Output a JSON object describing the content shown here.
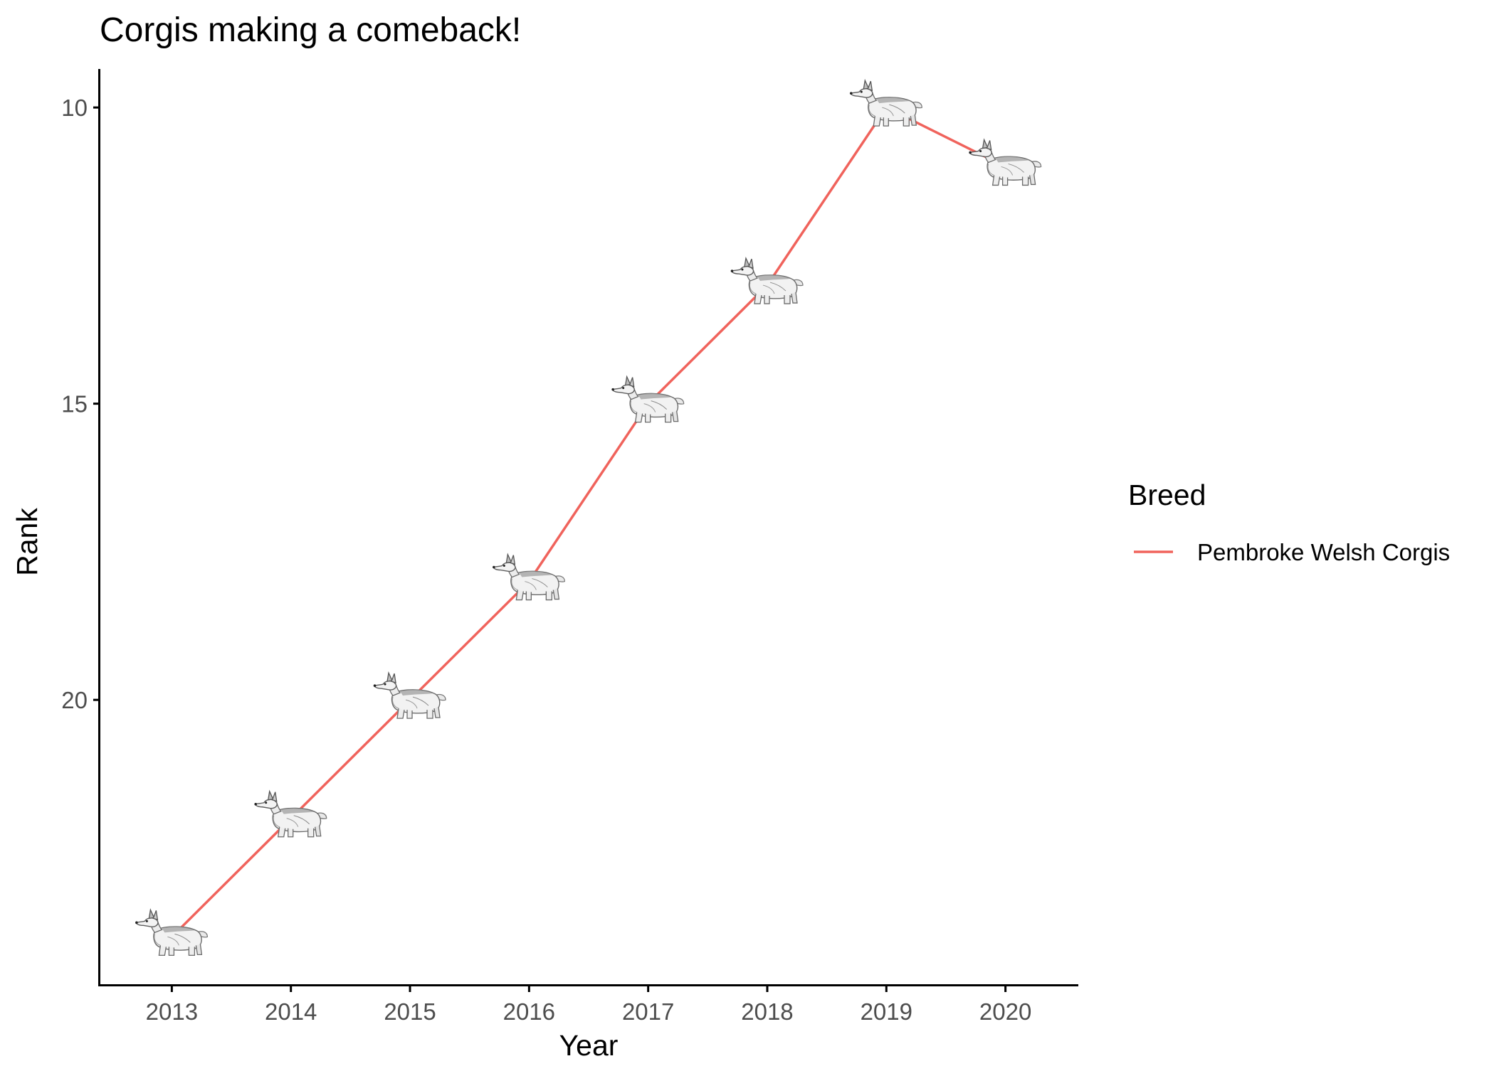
{
  "chart_data": {
    "type": "line",
    "title": "Corgis making a comeback!",
    "xlabel": "Year",
    "ylabel": "Rank",
    "x": [
      2013,
      2014,
      2015,
      2016,
      2017,
      2018,
      2019,
      2020
    ],
    "series": [
      {
        "name": "Pembroke Welsh Corgis",
        "values": [
          24,
          22,
          20,
          18,
          15,
          13,
          10,
          11
        ]
      }
    ],
    "y_reversed": true,
    "ylim": [
      24.8,
      9.35
    ],
    "xlim": [
      2012.4,
      2020.6
    ],
    "yticks": [
      10,
      15,
      20
    ],
    "xticks": [
      2013,
      2014,
      2015,
      2016,
      2017,
      2018,
      2019,
      2020
    ],
    "grid": false,
    "legend": {
      "title": "Breed",
      "position": "right"
    },
    "marker": "corgi-icon",
    "colors": {
      "line": "#f0635c",
      "axis": "#000000",
      "tick_text": "#4d4d4d"
    }
  }
}
